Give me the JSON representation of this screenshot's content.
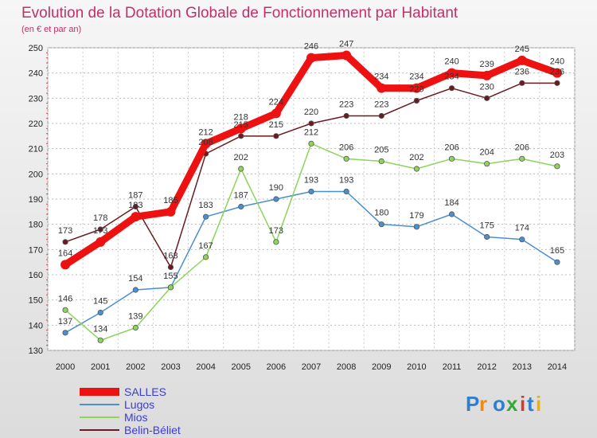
{
  "chart_data": {
    "type": "line",
    "title": "Evolution de la Dotation Globale de Fonctionnement par Habitant",
    "subtitle": "(en € et par an)",
    "xlabel": "",
    "ylabel": "",
    "ylim": [
      130,
      250
    ],
    "y_ticks": [
      130,
      140,
      150,
      160,
      170,
      180,
      190,
      200,
      210,
      220,
      230,
      240,
      250
    ],
    "grid": true,
    "legend_position": "bottom-left",
    "x": [
      "2000",
      "2001",
      "2002",
      "2003",
      "2004",
      "2005",
      "2006",
      "2007",
      "2008",
      "2009",
      "2010",
      "2011",
      "2012",
      "2013",
      "2014"
    ],
    "series": [
      {
        "name": "SALLES",
        "color": "#ee1111",
        "values": [
          164,
          173,
          183,
          185,
          212,
          218,
          224,
          246,
          247,
          234,
          234,
          240,
          239,
          245,
          240
        ]
      },
      {
        "name": "Lugos",
        "color": "#4a8fcf",
        "values": [
          137,
          145,
          154,
          155,
          183,
          187,
          190,
          193,
          193,
          180,
          179,
          184,
          175,
          174,
          165
        ]
      },
      {
        "name": "Mios",
        "color": "#8cd45a",
        "values": [
          146,
          134,
          139,
          155,
          167,
          202,
          173,
          212,
          206,
          205,
          202,
          206,
          204,
          206,
          203
        ]
      },
      {
        "name": "Belin-Béliet",
        "color": "#6b1a20",
        "values": [
          173,
          178,
          187,
          163,
          208,
          215,
          215,
          220,
          223,
          223,
          229,
          234,
          230,
          236,
          236
        ]
      }
    ],
    "value_labels": {
      "SALLES": [
        "164",
        "173",
        "183",
        "185",
        "212",
        "218",
        "224",
        "246",
        "247",
        "234",
        "234",
        "240",
        "239",
        "245",
        "240"
      ],
      "Lugos": [
        "137",
        "145",
        "154",
        "155",
        "183",
        "187",
        "190",
        "193",
        "193",
        "180",
        "179",
        "184",
        "175",
        "174",
        "165"
      ],
      "Mios": [
        "146",
        "134",
        "139",
        "",
        "167",
        "202",
        "173",
        "212",
        "206",
        "205",
        "202",
        "206",
        "204",
        "206",
        "203"
      ],
      "Belin-Béliet": [
        "173",
        "178",
        "187",
        "163",
        "208",
        "215",
        "215",
        "220",
        "223",
        "223",
        "229",
        "234",
        "230",
        "236",
        "236"
      ]
    }
  },
  "brand": {
    "text": "Proxiti",
    "letters": [
      "P",
      "r",
      "o",
      "x",
      "i",
      "t",
      "i"
    ],
    "colors": [
      "#2e7fd0",
      "#f08a12",
      "#2e7fd0",
      "#3aa63a",
      "#d63a2a",
      "#2e7fd0",
      "#f0b000"
    ]
  }
}
